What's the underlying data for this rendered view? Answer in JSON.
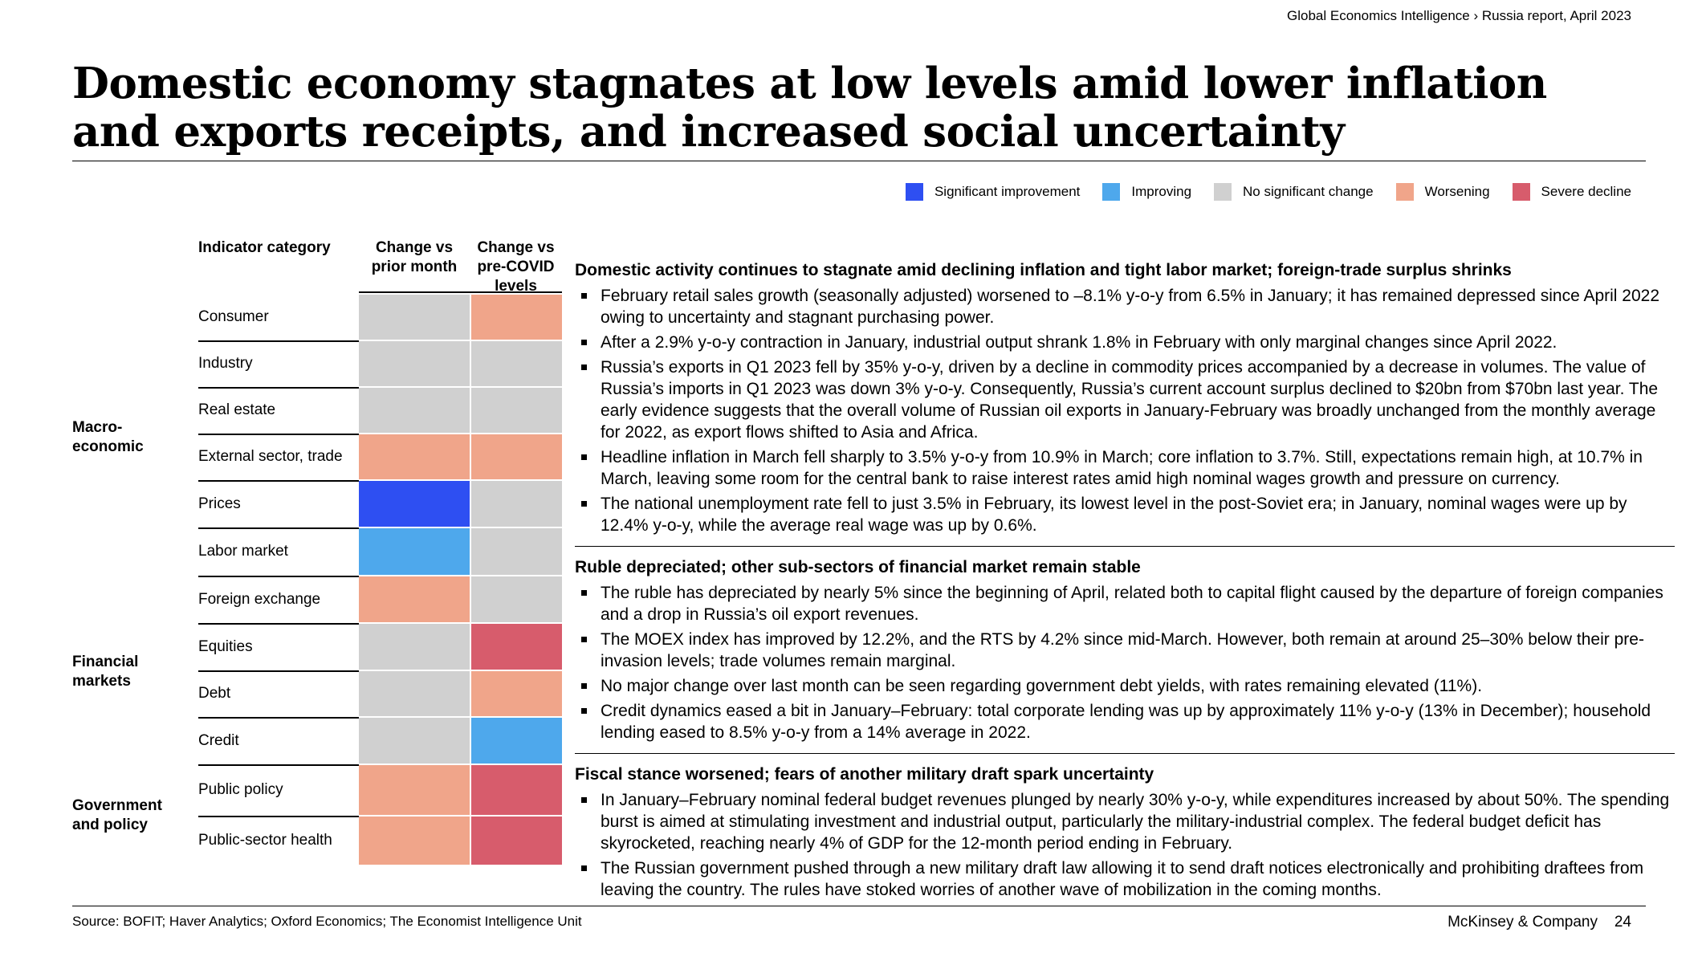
{
  "breadcrumb": "Global Economics Intelligence › Russia report, April 2023",
  "title": "Domestic economy stagnates at low levels amid lower inflation and exports receipts, and increased social uncertainty",
  "colors": {
    "significant_improvement": "#2e4ff2",
    "improving": "#4ea8ec",
    "no_change": "#d0d0d0",
    "worsening": "#f0a58a",
    "severe_decline": "#d75c6c"
  },
  "legend": [
    {
      "label": "Significant improvement",
      "status": "significant_improvement"
    },
    {
      "label": "Improving",
      "status": "improving"
    },
    {
      "label": "No significant change",
      "status": "no_change"
    },
    {
      "label": "Worsening",
      "status": "worsening"
    },
    {
      "label": "Severe decline",
      "status": "severe_decline"
    }
  ],
  "table": {
    "headers": {
      "category": "Indicator category",
      "prior_month": "Change vs prior month",
      "pre_covid": "Change vs pre-COVID levels"
    },
    "groups": [
      {
        "label": "Macro-economic"
      },
      {
        "label": "Financial markets"
      },
      {
        "label": "Government and policy"
      }
    ],
    "rows": [
      {
        "label": "Consumer",
        "prior_month": "no_change",
        "pre_covid": "worsening"
      },
      {
        "label": "Industry",
        "prior_month": "no_change",
        "pre_covid": "no_change"
      },
      {
        "label": "Real estate",
        "prior_month": "no_change",
        "pre_covid": "no_change"
      },
      {
        "label": "External sector, trade",
        "prior_month": "worsening",
        "pre_covid": "worsening"
      },
      {
        "label": "Prices",
        "prior_month": "significant_improvement",
        "pre_covid": "no_change"
      },
      {
        "label": "Labor market",
        "prior_month": "improving",
        "pre_covid": "no_change"
      },
      {
        "label": "Foreign exchange",
        "prior_month": "worsening",
        "pre_covid": "no_change"
      },
      {
        "label": "Equities",
        "prior_month": "no_change",
        "pre_covid": "severe_decline"
      },
      {
        "label": "Debt",
        "prior_month": "no_change",
        "pre_covid": "worsening"
      },
      {
        "label": "Credit",
        "prior_month": "no_change",
        "pre_covid": "improving"
      },
      {
        "label": "Public policy",
        "prior_month": "worsening",
        "pre_covid": "severe_decline"
      },
      {
        "label": "Public-sector health",
        "prior_month": "worsening",
        "pre_covid": "severe_decline"
      }
    ]
  },
  "sections": [
    {
      "heading": "Domestic activity continues to stagnate amid declining inflation and tight labor market; foreign-trade surplus shrinks",
      "bullets": [
        "February retail sales growth (seasonally adjusted) worsened to –8.1% y-o-y from 6.5% in January; it has remained depressed since April 2022 owing to uncertainty and stagnant purchasing power.",
        "After a 2.9% y-o-y contraction in January, industrial output shrank 1.8% in February with only marginal changes since April 2022.",
        "Russia’s exports in Q1 2023 fell by 35% y-o-y, driven by a decline in commodity prices accompanied by a decrease in volumes. The value of Russia’s imports in Q1 2023 was down 3% y-o-y. Consequently, Russia’s current account surplus declined to $20bn from $70bn last year. The early evidence suggests that the overall volume of Russian oil exports in January-February was broadly unchanged from the monthly average for 2022, as export flows shifted to Asia and Africa.",
        "Headline inflation in March fell sharply to 3.5% y-o-y from 10.9% in March; core inflation to 3.7%. Still, expectations remain high, at 10.7% in March, leaving some room for the central bank to raise interest rates amid high nominal wages growth and pressure on currency.",
        "The national unemployment rate fell to just 3.5% in February, its lowest level in the post-Soviet era; in January, nominal wages were up by 12.4% y-o-y, while the average real wage was up by 0.6%."
      ]
    },
    {
      "heading": "Ruble depreciated; other sub-sectors of financial market remain stable",
      "bullets": [
        "The ruble has depreciated by nearly 5% since the beginning of April, related both to capital flight caused by the departure of foreign companies and a drop in Russia’s oil export revenues.",
        "The MOEX index has improved by 12.2%, and the RTS by 4.2% since mid-March. However, both remain at around 25–30% below their pre-invasion levels; trade volumes remain marginal.",
        "No major change over last month can be seen regarding government debt yields, with rates remaining elevated (11%).",
        "Credit dynamics eased a bit in January–February: total corporate lending was up by approximately 11% y-o-y (13% in December); household lending eased to 8.5% y-o-y from a 14% average in 2022."
      ]
    },
    {
      "heading": "Fiscal stance worsened; fears of another military draft spark uncertainty",
      "bullets": [
        "In January–February nominal federal budget revenues plunged by nearly 30% y-o-y, while expenditures increased by about 50%. The spending burst is aimed at stimulating investment and industrial output, particularly the military-industrial complex. The federal budget deficit has skyrocketed, reaching nearly 4% of GDP for the 12-month period ending in February.",
        "The Russian government pushed through a new military draft law allowing it to send draft notices electronically and prohibiting draftees from leaving the country. The rules have stoked worries of another wave of mobilization in the coming months."
      ]
    }
  ],
  "footer": {
    "source": "Source: BOFIT; Haver Analytics; Oxford Economics; The Economist Intelligence Unit",
    "brand": "McKinsey & Company",
    "page": "24"
  }
}
